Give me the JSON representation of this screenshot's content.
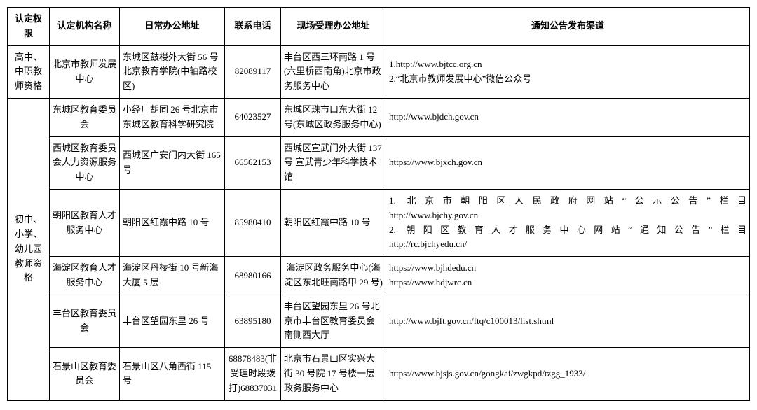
{
  "headers": {
    "authority": "认定权限",
    "org": "认定机构名称",
    "addr": "日常办公地址",
    "phone": "联系电话",
    "onsite": "现场受理办公地址",
    "channel": "通知公告发布渠道"
  },
  "rows": [
    {
      "authority": "高中、中职教师资格",
      "org": "北京市教师发展中心",
      "addr": "东城区鼓楼外大街 56 号北京教育学院(中轴路校区)",
      "phone": "82089117",
      "onsite": "丰台区西三环南路 1 号(六里桥西南角)北京市政务服务中心",
      "channel": "1.http://www.bjtcc.org.cn\n2.“北京市教师发展中心”微信公众号"
    },
    {
      "authority": "初中、小学、幼儿园教师资格",
      "org": "东城区教育委员会",
      "addr": "小经厂胡同 26 号北京市东城区教育科学研究院",
      "phone": "64023527",
      "onsite": "东城区珠市口东大街 12 号(东城区政务服务中心)",
      "channel": "http://www.bjdch.gov.cn"
    },
    {
      "org": "西城区教育委员会人力资源服务中心",
      "addr": "西城区广安门内大街 165 号",
      "phone": "66562153",
      "onsite": "西城区宣武门外大街 137 号 宣武青少年科学技术馆",
      "channel": "https://www.bjxch.gov.cn"
    },
    {
      "org": "朝阳区教育人才服务中心",
      "addr": "朝阳区红霞中路 10 号",
      "phone": "85980410",
      "onsite": "朝阳区红霞中路 10 号",
      "channel_j1": "1. 北京市朝阳区人民政府网站“公示公告”栏目",
      "channel_u1": "http://www.bjchy.gov.cn",
      "channel_j2": "2. 朝阳区教育人才服务中心网站“通知公告”栏目",
      "channel_u2": "http://rc.bjchyedu.cn/"
    },
    {
      "org": "海淀区教育人才服务中心",
      "addr": "海淀区丹棱街 10 号新海大厦 5 层",
      "phone": "68980166",
      "onsite": "海淀区政务服务中心(海淀区东北旺南路甲 29 号)",
      "channel": "https://www.bjhdedu.cn\nhttps://www.hdjwrc.cn"
    },
    {
      "org": "丰台区教育委员会",
      "addr": "丰台区望园东里 26 号",
      "phone": "63895180",
      "onsite": "丰台区望园东里 26 号北京市丰台区教育委员会南侧西大厅",
      "channel": "http://www.bjft.gov.cn/ftq/c100013/list.shtml"
    },
    {
      "org": "石景山区教育委员会",
      "addr": "石景山区八角西街 115 号",
      "phone": "68878483(非受理时段拨打)68837031",
      "onsite": "北京市石景山区实兴大街 30 号院 17 号楼一层政务服务中心",
      "channel": "https://www.bjsjs.gov.cn/gongkai/zwgkpd/tzgg_1933/"
    }
  ],
  "style": {
    "fontsize": 13,
    "border_color": "#000000",
    "background": "#ffffff",
    "font_family": "SimSun"
  }
}
